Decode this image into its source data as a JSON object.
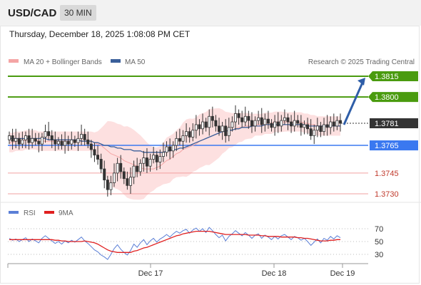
{
  "header": {
    "symbol": "USD/CAD",
    "interval": "30 MIN",
    "timestamp": "Thursday, December 18, 2025 1:08:08 PM CET"
  },
  "legend": {
    "ma20": "MA 20 + Bollinger Bands",
    "ma50": "MA 50",
    "credit": "Research © 2025 Trading Central",
    "colors": {
      "ma20": "#f4a5a5",
      "ma50": "#3a5f9a"
    }
  },
  "rsi_legend": {
    "rsi": "RSI",
    "ma": "9MA",
    "colors": {
      "rsi": "#5b7fd6",
      "ma": "#e02020"
    }
  },
  "levels": [
    {
      "value": "1.3815",
      "kind": "target",
      "color": "#4a9b0f"
    },
    {
      "value": "1.3800",
      "kind": "target",
      "color": "#4a9b0f"
    },
    {
      "value": "1.3781",
      "kind": "current",
      "color": "#333333"
    },
    {
      "value": "1.3765",
      "kind": "pivot",
      "color": "#3a78f0"
    },
    {
      "value": "1.3745",
      "kind": "support",
      "color": "#e07070"
    },
    {
      "value": "1.3730",
      "kind": "support",
      "color": "#e07070"
    }
  ],
  "chart_data": [
    {
      "type": "candlestick",
      "title": "USD/CAD",
      "ylim": [
        1.3725,
        1.3825
      ],
      "y_levels": [
        1.3815,
        1.38,
        1.3781,
        1.3765,
        1.3745,
        1.373
      ],
      "x_ticks": [
        "Dec 17",
        "Dec 18",
        "Dec 19"
      ],
      "last_close": 1.3781,
      "series": [
        {
          "name": "Price",
          "close": [
            1.3772,
            1.3768,
            1.377,
            1.3766,
            1.3769,
            1.3772,
            1.3767,
            1.377,
            1.3768,
            1.3766,
            1.3771,
            1.3775,
            1.3772,
            1.3769,
            1.3766,
            1.3768,
            1.3765,
            1.3768,
            1.3766,
            1.3769,
            1.3767,
            1.377,
            1.3773,
            1.3769,
            1.3766,
            1.3762,
            1.3758,
            1.3755,
            1.3748,
            1.374,
            1.3733,
            1.3738,
            1.3745,
            1.3752,
            1.3746,
            1.3741,
            1.3736,
            1.3742,
            1.375,
            1.3746,
            1.3752,
            1.3756,
            1.375,
            1.3755,
            1.3758,
            1.3753,
            1.3757,
            1.376,
            1.3764,
            1.3761,
            1.3765,
            1.377,
            1.3768,
            1.3772,
            1.3775,
            1.3771,
            1.3776,
            1.378,
            1.3777,
            1.3782,
            1.3778,
            1.3786,
            1.3783,
            1.3779,
            1.3775,
            1.3779,
            1.3772,
            1.3778,
            1.3782,
            1.3788,
            1.3785,
            1.3782,
            1.3786,
            1.3783,
            1.3779,
            1.3783,
            1.3785,
            1.378,
            1.3784,
            1.3781,
            1.3778,
            1.3782,
            1.3779,
            1.3783,
            1.3785,
            1.3782,
            1.3779,
            1.3783,
            1.3781,
            1.3778,
            1.378,
            1.3777,
            1.3772,
            1.3776,
            1.3779,
            1.3775,
            1.378,
            1.3778,
            1.3782,
            1.3779,
            1.3783,
            1.3781
          ]
        },
        {
          "name": "MA 20",
          "values": [
            1.3767,
            1.3767,
            1.3768,
            1.3768,
            1.3768,
            1.3769,
            1.3769,
            1.3769,
            1.3769,
            1.3768,
            1.3768,
            1.3768,
            1.3768,
            1.3768,
            1.3768,
            1.3768,
            1.3768,
            1.3768,
            1.3768,
            1.3768,
            1.3768,
            1.3768,
            1.3768,
            1.3768,
            1.3768,
            1.3768,
            1.3767,
            1.3766,
            1.3765,
            1.3763,
            1.3761,
            1.3759,
            1.3758,
            1.3757,
            1.3756,
            1.3754,
            1.3753,
            1.3752,
            1.3751,
            1.375,
            1.3749,
            1.3748,
            1.3748,
            1.3748,
            1.3748,
            1.3749,
            1.375,
            1.3752,
            1.3754,
            1.3755,
            1.3757,
            1.3759,
            1.376,
            1.3762,
            1.3763,
            1.3764,
            1.3765,
            1.3766,
            1.3768,
            1.3769,
            1.377,
            1.3771,
            1.3772,
            1.3773,
            1.3774,
            1.3775,
            1.3775,
            1.3776,
            1.3776,
            1.3777,
            1.3778,
            1.3778,
            1.3779,
            1.3779,
            1.3779,
            1.378,
            1.378,
            1.378,
            1.3781,
            1.3781,
            1.3781,
            1.3782,
            1.3782,
            1.3782,
            1.3782,
            1.3782,
            1.3782,
            1.3782,
            1.3782,
            1.3782,
            1.3781,
            1.3781,
            1.378,
            1.378,
            1.3779,
            1.3779,
            1.3779,
            1.3779,
            1.3779,
            1.3779,
            1.3779,
            1.3779
          ]
        },
        {
          "name": "MA 50",
          "values": [
            1.377,
            1.377,
            1.377,
            1.377,
            1.377,
            1.377,
            1.377,
            1.377,
            1.377,
            1.377,
            1.377,
            1.377,
            1.3769,
            1.3769,
            1.3769,
            1.3769,
            1.3769,
            1.3769,
            1.3769,
            1.3769,
            1.3769,
            1.3769,
            1.3768,
            1.3768,
            1.3768,
            1.3768,
            1.3767,
            1.3767,
            1.3766,
            1.3765,
            1.3765,
            1.3764,
            1.3764,
            1.3763,
            1.3763,
            1.3762,
            1.3762,
            1.3762,
            1.3761,
            1.3761,
            1.3761,
            1.376,
            1.376,
            1.376,
            1.376,
            1.376,
            1.376,
            1.376,
            1.3761,
            1.3761,
            1.3762,
            1.3762,
            1.3763,
            1.3763,
            1.3764,
            1.3765,
            1.3766,
            1.3767,
            1.3768,
            1.3769,
            1.377,
            1.3771,
            1.3772,
            1.3773,
            1.3774,
            1.3775,
            1.3775,
            1.3776,
            1.3776,
            1.3777,
            1.3777,
            1.3778,
            1.3778,
            1.3778,
            1.3779,
            1.3779,
            1.3779,
            1.3779,
            1.378,
            1.378,
            1.378,
            1.378,
            1.378,
            1.378,
            1.378,
            1.378,
            1.378,
            1.378,
            1.378,
            1.378,
            1.378,
            1.3779,
            1.3779,
            1.3779,
            1.3779,
            1.3779,
            1.3779,
            1.3779,
            1.3779,
            1.3779,
            1.3779,
            1.3779
          ]
        }
      ],
      "forecast": {
        "from": 1.3781,
        "to": 1.3815
      }
    },
    {
      "type": "line",
      "title": "RSI",
      "ylim": [
        20,
        80
      ],
      "y_ticks": [
        "70",
        "50",
        "30"
      ],
      "series": [
        {
          "name": "RSI",
          "values": [
            55,
            52,
            54,
            50,
            53,
            56,
            50,
            54,
            51,
            48,
            55,
            59,
            55,
            51,
            47,
            50,
            46,
            51,
            48,
            52,
            49,
            53,
            57,
            51,
            47,
            42,
            37,
            34,
            29,
            26,
            22,
            30,
            39,
            45,
            38,
            33,
            29,
            36,
            46,
            41,
            48,
            53,
            45,
            51,
            55,
            49,
            54,
            57,
            61,
            57,
            62,
            66,
            63,
            67,
            69,
            63,
            68,
            71,
            66,
            70,
            64,
            72,
            67,
            61,
            56,
            60,
            51,
            58,
            62,
            67,
            63,
            59,
            64,
            60,
            55,
            60,
            62,
            55,
            60,
            57,
            53,
            58,
            54,
            59,
            61,
            57,
            53,
            58,
            56,
            52,
            55,
            50,
            44,
            49,
            54,
            48,
            55,
            52,
            58,
            54,
            59,
            56
          ]
        },
        {
          "name": "9MA",
          "values": [
            53,
            53,
            53,
            53,
            53,
            53,
            53,
            53,
            53,
            53,
            53,
            53,
            53,
            53,
            52,
            52,
            51,
            51,
            50,
            50,
            50,
            50,
            50,
            51,
            50,
            49,
            48,
            46,
            43,
            40,
            37,
            35,
            34,
            33,
            33,
            33,
            33,
            33,
            35,
            36,
            38,
            40,
            41,
            43,
            45,
            47,
            49,
            51,
            53,
            55,
            57,
            59,
            60,
            62,
            63,
            64,
            65,
            66,
            66,
            66,
            66,
            66,
            65,
            64,
            63,
            62,
            61,
            61,
            61,
            61,
            61,
            61,
            61,
            60,
            60,
            60,
            60,
            59,
            59,
            58,
            58,
            58,
            58,
            57,
            57,
            57,
            57,
            57,
            56,
            56,
            55,
            55,
            54,
            53,
            52,
            51,
            51,
            51,
            52,
            52,
            53,
            53
          ]
        }
      ]
    }
  ]
}
